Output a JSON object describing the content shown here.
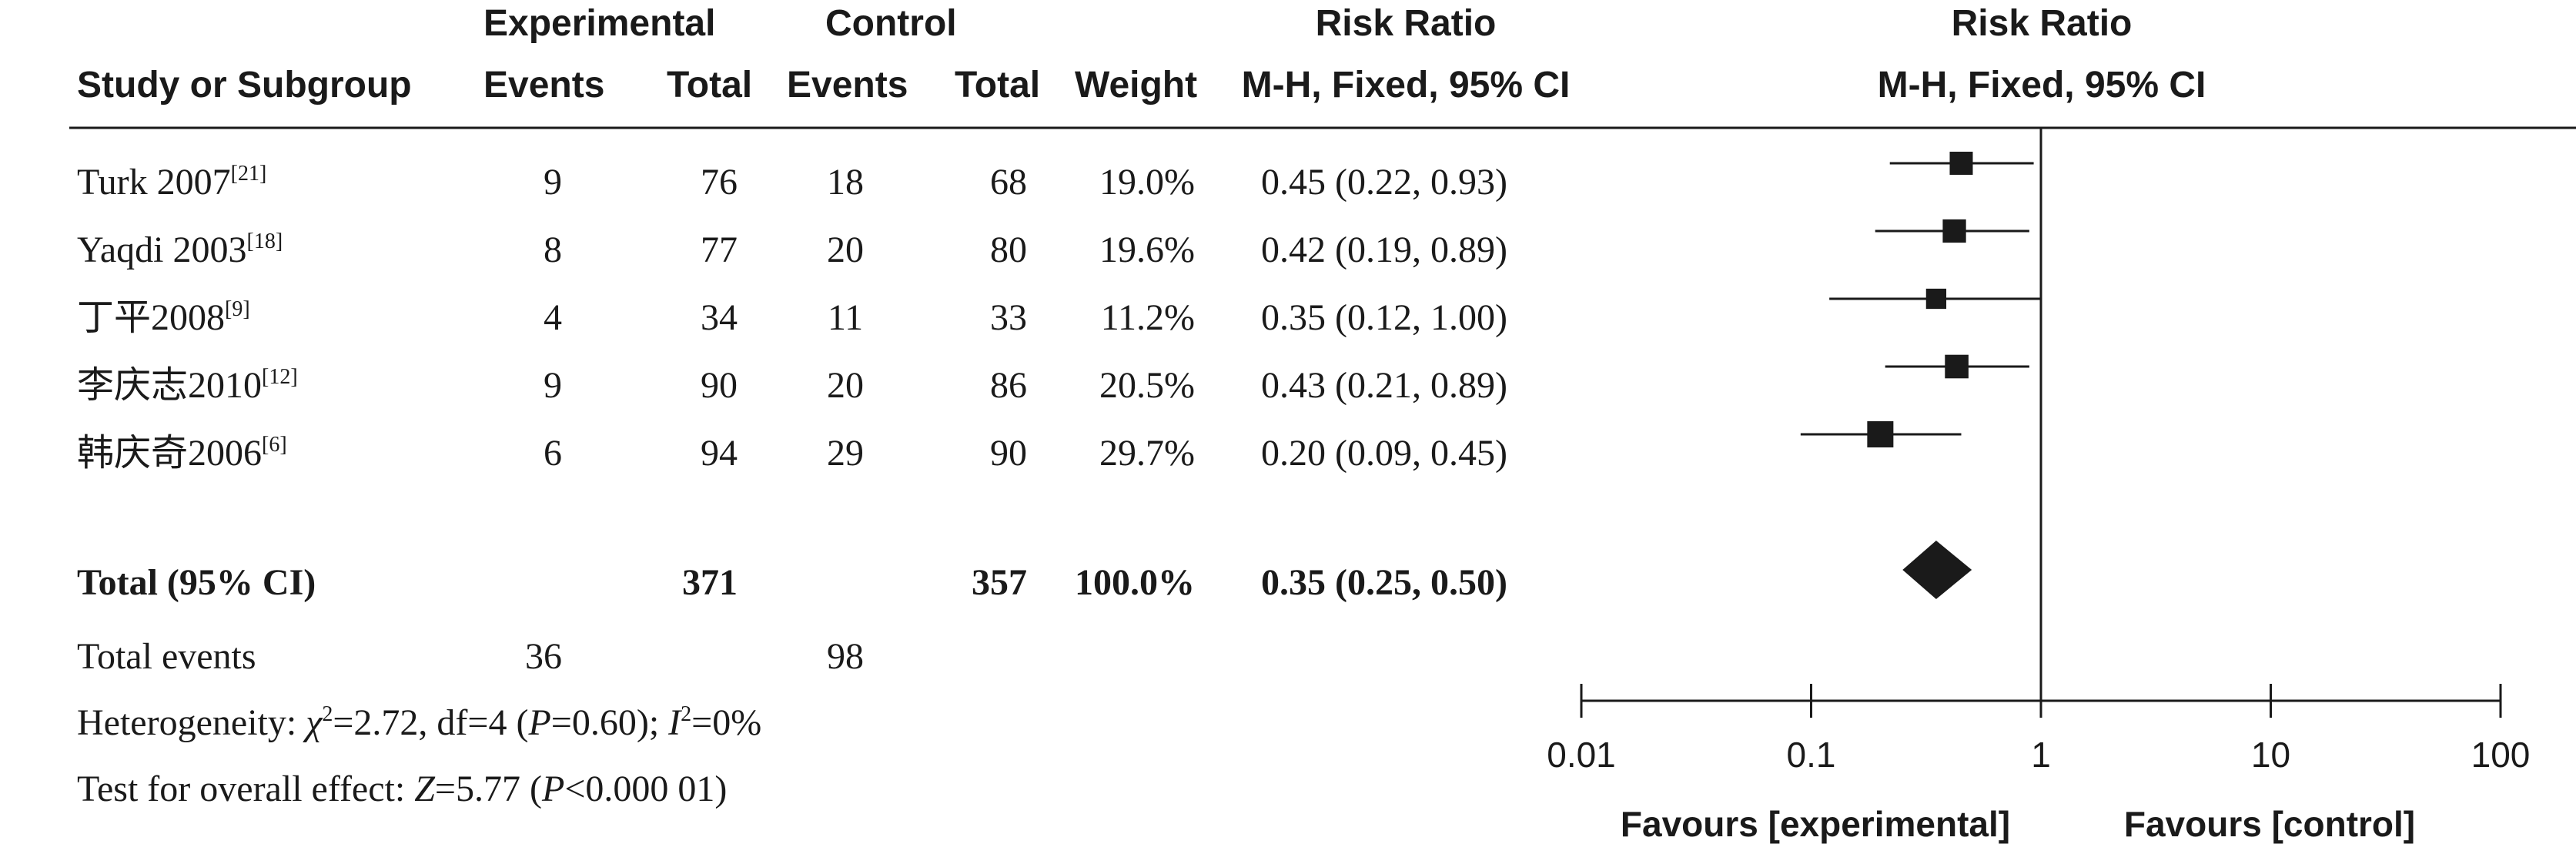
{
  "headers": {
    "group1": "Experimental",
    "group2": "Control",
    "study": "Study or Subgroup",
    "events1": "Events",
    "total1": "Total",
    "events2": "Events",
    "total2": "Total",
    "weight": "Weight",
    "rr_title": "Risk Ratio",
    "rr_method": "M-H, Fixed, 95% CI",
    "plot_title": "Risk Ratio",
    "plot_method": "M-H, Fixed, 95% CI"
  },
  "studies": [
    {
      "name": "Turk 2007",
      "ref": "[21]",
      "e1": "9",
      "t1": "76",
      "e2": "18",
      "t2": "68",
      "weight": "19.0%",
      "ci_text": "0.45 (0.22, 0.93)"
    },
    {
      "name": "Yaqdi 2003",
      "ref": "[18]",
      "e1": "8",
      "t1": "77",
      "e2": "20",
      "t2": "80",
      "weight": "19.6%",
      "ci_text": "0.42 (0.19, 0.89)"
    },
    {
      "name": "丁平2008",
      "ref": "[9]",
      "e1": "4",
      "t1": "34",
      "e2": "11",
      "t2": "33",
      "weight": "11.2%",
      "ci_text": "0.35 (0.12, 1.00)"
    },
    {
      "name": "李庆志2010",
      "ref": "[12]",
      "e1": "9",
      "t1": "90",
      "e2": "20",
      "t2": "86",
      "weight": "20.5%",
      "ci_text": "0.43 (0.21, 0.89)"
    },
    {
      "name": "韩庆奇2006",
      "ref": "[6]",
      "e1": "6",
      "t1": "94",
      "e2": "29",
      "t2": "90",
      "weight": "29.7%",
      "ci_text": "0.20 (0.09, 0.45)"
    }
  ],
  "total": {
    "label": "Total (95% CI)",
    "t1": "371",
    "t2": "357",
    "weight": "100.0%",
    "ci_text": "0.35 (0.25, 0.50)"
  },
  "total_events": {
    "label": "Total events",
    "e1": "36",
    "e2": "98"
  },
  "heterogeneity": {
    "prefix": "Heterogeneity: ",
    "chi": "χ",
    "chi_exp": "2",
    "chi_val": "=2.72, df=4 (",
    "p": "P",
    "p_val": "=0.60); ",
    "i": "I",
    "i_exp": "2",
    "i_val": "=0%"
  },
  "overall": {
    "prefix": "Test for overall effect: ",
    "z": "Z",
    "z_val": "=5.77 (",
    "p": "P",
    "p_val": "<0.000 01)"
  },
  "favours": {
    "left": "Favours [experimental]",
    "right": "Favours [control]"
  },
  "axis_ticks": [
    "0.01",
    "0.1",
    "1",
    "10",
    "100"
  ],
  "chart_data": {
    "type": "forest",
    "scale": "log",
    "xlim": [
      0.01,
      100
    ],
    "x_ticks": [
      0.01,
      0.1,
      1,
      10,
      100
    ],
    "reference_line": 1,
    "studies": [
      {
        "name": "Turk 2007",
        "rr": 0.45,
        "lower": 0.22,
        "upper": 0.93,
        "weight": 19.0
      },
      {
        "name": "Yaqdi 2003",
        "rr": 0.42,
        "lower": 0.19,
        "upper": 0.89,
        "weight": 19.6
      },
      {
        "name": "丁平2008",
        "rr": 0.35,
        "lower": 0.12,
        "upper": 1.0,
        "weight": 11.2
      },
      {
        "name": "李庆志2010",
        "rr": 0.43,
        "lower": 0.21,
        "upper": 0.89,
        "weight": 20.5
      },
      {
        "name": "韩庆奇2006",
        "rr": 0.2,
        "lower": 0.09,
        "upper": 0.45,
        "weight": 29.7
      }
    ],
    "pooled": {
      "rr": 0.35,
      "lower": 0.25,
      "upper": 0.5
    },
    "colors": {
      "ink": "#1a1a1a"
    }
  }
}
